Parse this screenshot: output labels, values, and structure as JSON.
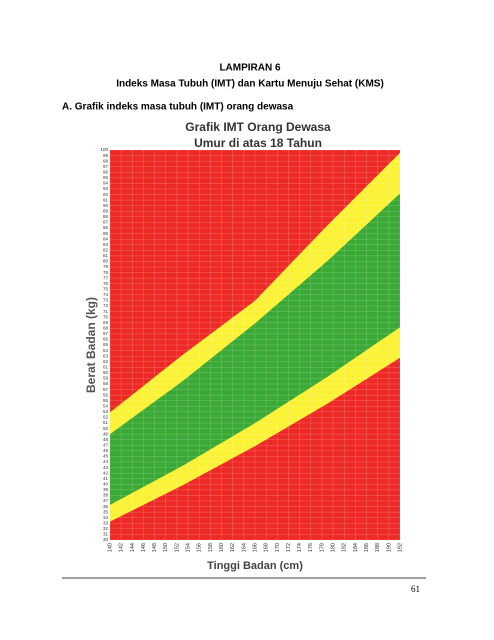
{
  "header": {
    "title": "LAMPIRAN 6",
    "subtitle": "Indeks Masa Tubuh (IMT) dan Kartu Menuju Sehat (KMS)"
  },
  "section": "A. Grafik indeks masa tubuh (IMT) orang dewasa",
  "chart_data": {
    "type": "heatmap",
    "title": "Grafik IMT Orang Dewasa",
    "subtitle": "Umur di atas 18 Tahun",
    "x_label": "Tinggi Badan (cm)",
    "y_label": "Berat Badan (kg)",
    "xlim": [
      140,
      192
    ],
    "ylim": [
      30,
      100
    ],
    "xticks": [
      140,
      142,
      144,
      146,
      148,
      150,
      152,
      154,
      156,
      158,
      160,
      162,
      164,
      166,
      168,
      170,
      172,
      174,
      176,
      178,
      180,
      182,
      184,
      186,
      188,
      190,
      192
    ],
    "yticks": [
      30,
      31,
      32,
      33,
      34,
      35,
      36,
      37,
      38,
      39,
      40,
      41,
      42,
      43,
      44,
      45,
      46,
      47,
      48,
      49,
      50,
      51,
      52,
      53,
      54,
      55,
      56,
      57,
      58,
      59,
      60,
      61,
      62,
      63,
      64,
      65,
      66,
      67,
      68,
      69,
      70,
      71,
      72,
      73,
      74,
      75,
      76,
      77,
      78,
      79,
      80,
      81,
      82,
      83,
      84,
      85,
      86,
      87,
      88,
      89,
      90,
      91,
      92,
      93,
      94,
      95,
      96,
      97,
      98,
      99,
      100
    ]
  },
  "page_number": "61"
}
